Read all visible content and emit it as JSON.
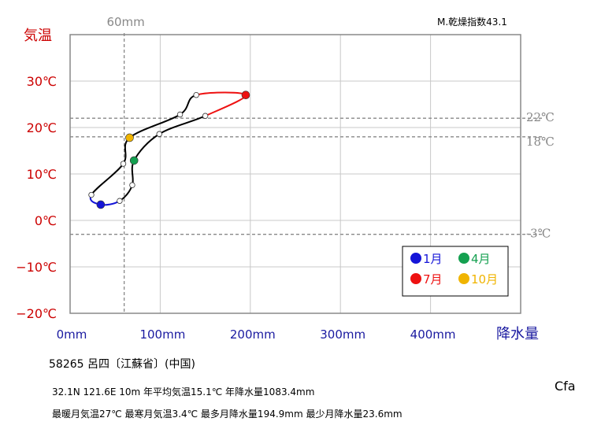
{
  "chart_data": {
    "type": "line",
    "title": "",
    "xlabel": "降水量",
    "ylabel": "気温",
    "xlim": [
      0,
      500
    ],
    "ylim": [
      -20,
      40
    ],
    "x_ticks": [
      0,
      100,
      200,
      300,
      400
    ],
    "x_tick_labels": [
      "0mm",
      "100mm",
      "200mm",
      "300mm",
      "400mm"
    ],
    "y_ticks": [
      -20,
      -10,
      0,
      10,
      20,
      30
    ],
    "y_tick_labels": [
      "−20℃",
      "−10℃",
      "0℃",
      "10℃",
      "20℃",
      "30℃"
    ],
    "grid": true,
    "series": [
      {
        "months": [
          1,
          2,
          3,
          4,
          5,
          6,
          7,
          8,
          9,
          10,
          11,
          12
        ],
        "precip_mm": [
          34.0,
          55.0,
          69.0,
          71.0,
          99.0,
          150.0,
          194.9,
          140.0,
          122.0,
          66.0,
          59.0,
          23.6
        ],
        "temp_c": [
          3.4,
          4.2,
          7.6,
          12.9,
          18.6,
          22.5,
          27.0,
          27.0,
          22.8,
          17.8,
          12.2,
          5.5
        ]
      }
    ],
    "segment_colors": {
      "winter": "#1515d8",
      "summer": "#ee1111",
      "other": "#000000"
    },
    "markers": [
      {
        "month": 1,
        "color": "#1515d8"
      },
      {
        "month": 4,
        "color": "#14a050"
      },
      {
        "month": 7,
        "color": "#ee1111"
      },
      {
        "month": 10,
        "color": "#f0b400"
      }
    ],
    "reference_lines": [
      {
        "axis": "x",
        "value": 60,
        "label": "60mm"
      },
      {
        "axis": "y",
        "value": 22,
        "label": "22℃"
      },
      {
        "axis": "y",
        "value": 18,
        "label": "18℃"
      },
      {
        "axis": "y",
        "value": -3,
        "label": "-3℃"
      }
    ],
    "legend": {
      "position": "bottom-right",
      "entries": [
        {
          "label": "1月",
          "color": "#1515d8"
        },
        {
          "label": "4月",
          "color": "#14a050"
        },
        {
          "label": "7月",
          "color": "#ee1111"
        },
        {
          "label": "10月",
          "color": "#f0b400"
        }
      ]
    },
    "annotation_top_right": "M.乾燥指数43.1"
  },
  "station": {
    "id_name": "58265 呂四〔江蘇省〕(中国)",
    "line1": "32.1N 121.6E 10m 年平均気温15.1℃ 年降水量1083.4mm",
    "line2": "最暖月気温27℃ 最寒月気温3.4℃ 最多月降水量194.9mm 最少月降水量23.6mm",
    "climate_class": "Cfa"
  },
  "colors": {
    "y_axis": "#cc0000",
    "x_axis": "#1a1aa0",
    "reference": "#888888",
    "grid": "#c8c8c8"
  }
}
